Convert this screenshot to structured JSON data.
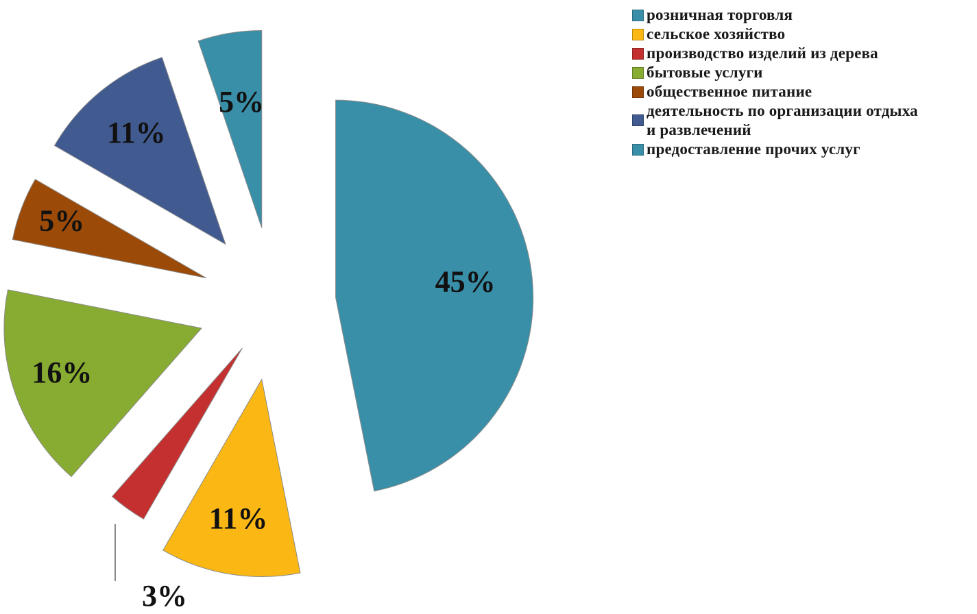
{
  "chart_data": {
    "type": "pie",
    "categories": [
      "розничная торговля",
      "сельское хозяйство",
      "производство изделий из дерева",
      "бытовые услуги",
      "общественное питание",
      "деятельность по организации отдыха и развлечений",
      "предоставление прочих услуг"
    ],
    "values": [
      45,
      11,
      3,
      16,
      5,
      11,
      5
    ],
    "data_labels": [
      "45%",
      "11%",
      "3%",
      "16%",
      "5%",
      "11%",
      "5%"
    ],
    "colors": [
      "#3a8fa8",
      "#fbb815",
      "#c3302f",
      "#88ab31",
      "#9c4a08",
      "#415a8f",
      "#3a8fa8"
    ],
    "exploded": true,
    "legend_position": "right"
  },
  "legend": {
    "items": [
      {
        "text": "розничная торговля"
      },
      {
        "text": "сельское хозяйство"
      },
      {
        "text": "производство изделий из дерева"
      },
      {
        "text": "бытовые услуги"
      },
      {
        "text": "общественное питание"
      },
      {
        "line1": "деятельность по организации отдыха",
        "line2": "и развлечений"
      },
      {
        "text": "предоставление прочих услуг"
      }
    ]
  }
}
